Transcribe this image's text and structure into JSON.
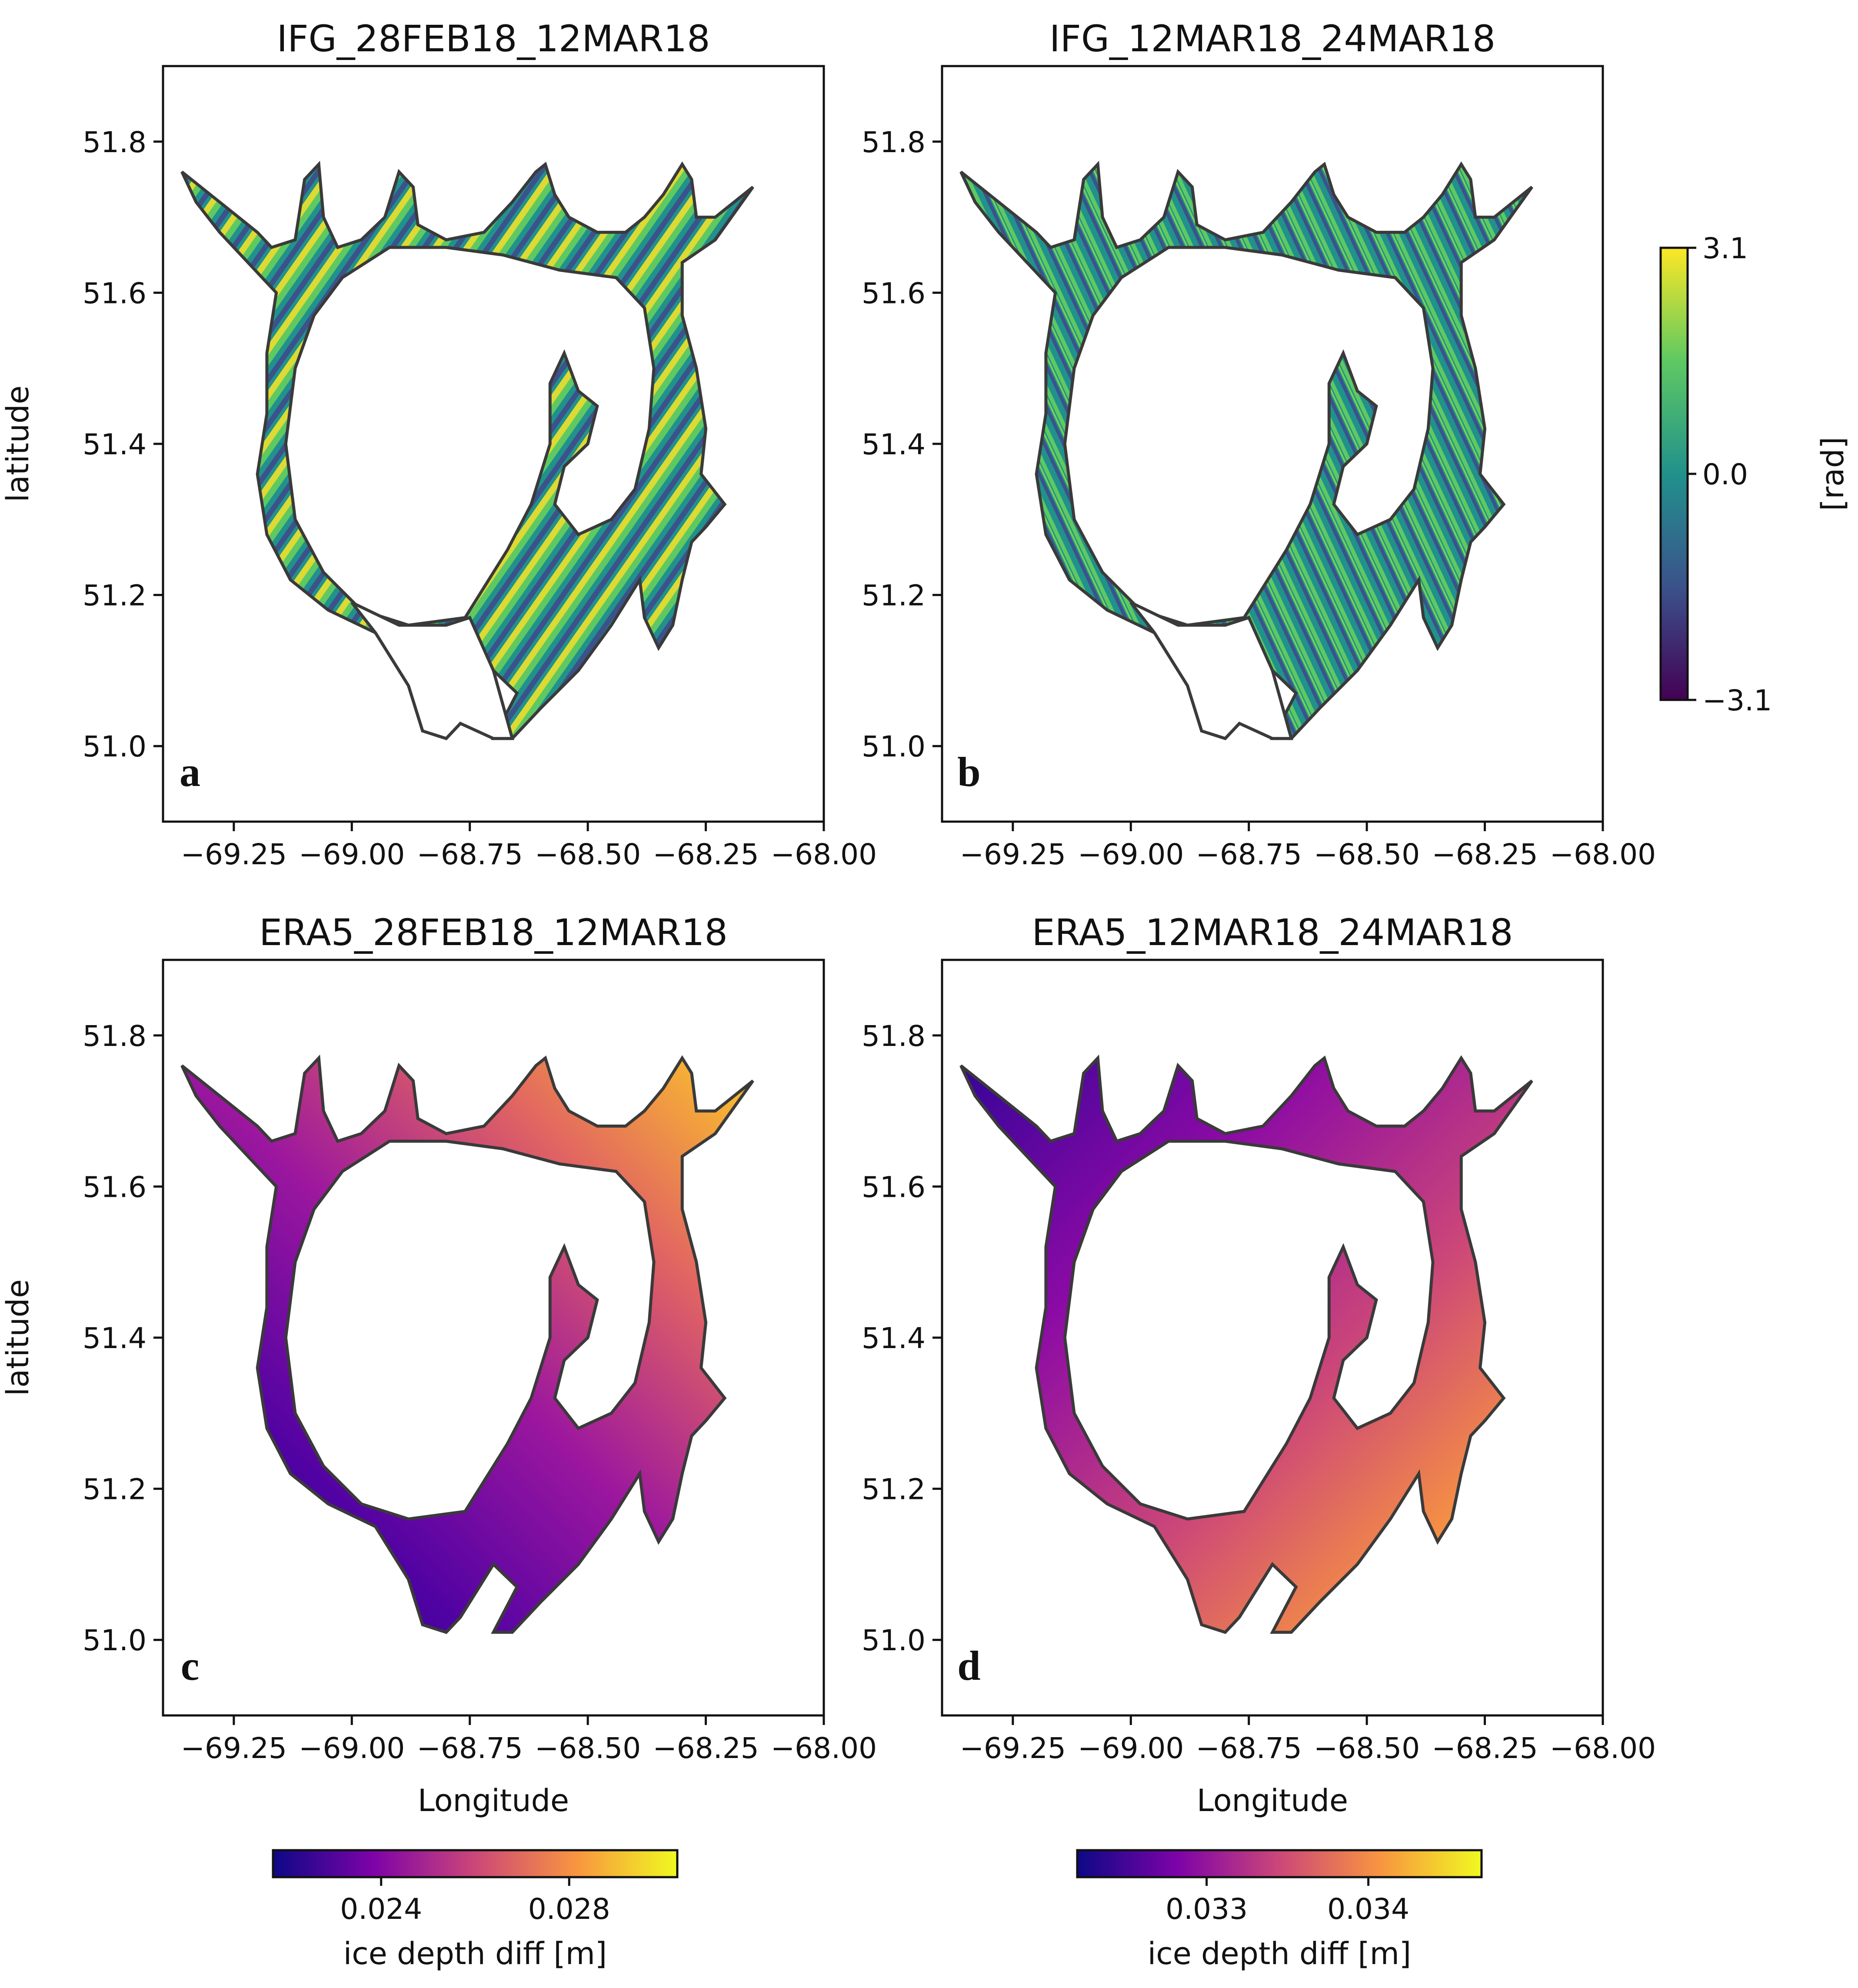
{
  "figure": {
    "panels": [
      {
        "id": "a",
        "title": "IFG_28FEB18_12MAR18",
        "letter": "a",
        "ylabel": "latitude",
        "xlabel": "",
        "field": "viridis-phase",
        "coverage": "partial"
      },
      {
        "id": "b",
        "title": "IFG_12MAR18_24MAR18",
        "letter": "b",
        "ylabel": "",
        "xlabel": "",
        "field": "viridis-phase",
        "coverage": "partial"
      },
      {
        "id": "c",
        "title": "ERA5_28FEB18_12MAR18",
        "letter": "c",
        "ylabel": "latitude",
        "xlabel": "Longitude",
        "field": "plasma-depth-c",
        "coverage": "full"
      },
      {
        "id": "d",
        "title": "ERA5_12MAR18_24MAR18",
        "letter": "d",
        "ylabel": "",
        "xlabel": "Longitude",
        "field": "plasma-depth-d",
        "coverage": "full"
      }
    ],
    "x_ticks": [
      "−69.25",
      "−69.00",
      "−68.75",
      "−68.50",
      "−68.25",
      "−68.00"
    ],
    "x_tick_values": [
      -69.25,
      -69.0,
      -68.75,
      -68.5,
      -68.25,
      -68.0
    ],
    "y_ticks": [
      "51.0",
      "51.2",
      "51.4",
      "51.6",
      "51.8"
    ],
    "y_tick_values": [
      51.0,
      51.2,
      51.4,
      51.6,
      51.8
    ],
    "lon_range": [
      -69.4,
      -68.0
    ],
    "lat_range": [
      50.9,
      51.9
    ],
    "colorbars": {
      "phase": {
        "label": "[rad]",
        "min_label": "−3.1",
        "mid_label": "0.0",
        "max_label": "3.1",
        "min": -3.1,
        "max": 3.1,
        "ticks": [
          -3.1,
          0.0,
          3.1
        ],
        "colormap": "viridis"
      },
      "era5_c": {
        "label": "ice depth diff [m]",
        "tick_labels": [
          "0.024",
          "0.028"
        ],
        "tick_values": [
          0.024,
          0.028
        ],
        "min": 0.0217,
        "max": 0.0303,
        "colormap": "plasma"
      },
      "era5_d": {
        "label": "ice depth diff [m]",
        "tick_labels": [
          "0.033",
          "0.034"
        ],
        "tick_values": [
          0.033,
          0.034
        ],
        "min": 0.0322,
        "max": 0.0347,
        "colormap": "plasma"
      }
    },
    "colors": {
      "viridis": [
        "#440154",
        "#3b528b",
        "#21918c",
        "#5ec962",
        "#fde725"
      ],
      "plasma": [
        "#0d0887",
        "#7e03a8",
        "#cc4778",
        "#f89540",
        "#f0f921"
      ],
      "outline": "#3a3a3a"
    }
  }
}
